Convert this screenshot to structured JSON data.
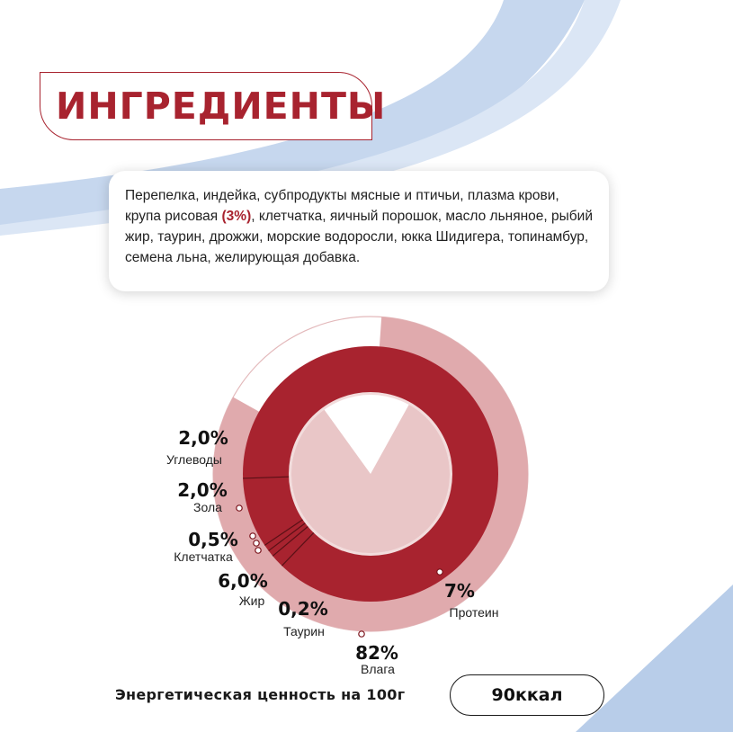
{
  "header": {
    "title": "ИНГРЕДИЕНТЫ"
  },
  "ingredients": {
    "text_before": "Перепелка, индейка, субпродукты мясные и птичьи, плазма крови, крупа рисовая ",
    "highlight": "(3%)",
    "text_after": ", клетчатка, яичный порошок, масло льняное, рыбий жир, таурин, дрожжи, морские водоросли, юкка Шидигера, топинамбур, семена льна, желирующая добавка."
  },
  "chart_data": {
    "type": "pie",
    "slices": [
      {
        "label": "Влага",
        "value_label": "82%",
        "value": 82
      },
      {
        "label": "Протеин",
        "value_label": "7%",
        "value": 7
      },
      {
        "label": "Жир",
        "value_label": "6,0%",
        "value": 6.0
      },
      {
        "label": "Углеводы",
        "value_label": "2,0%",
        "value": 2.0
      },
      {
        "label": "Зола",
        "value_label": "2,0%",
        "value": 2.0
      },
      {
        "label": "Клетчатка",
        "value_label": "0,5%",
        "value": 0.5
      },
      {
        "label": "Таурин",
        "value_label": "0,2%",
        "value": 0.2
      }
    ],
    "colors": {
      "dark": "#a8232f",
      "light": "#e0aaad",
      "center": "#e9c6c7"
    }
  },
  "energy": {
    "label": "Энергетическая ценность на 100г",
    "value": "90ккал"
  }
}
